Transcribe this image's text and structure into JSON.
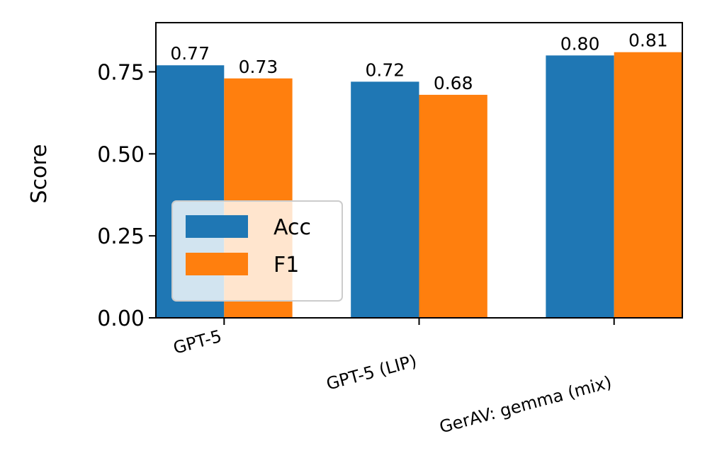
{
  "chart_data": {
    "type": "bar",
    "title": "",
    "xlabel": "",
    "ylabel": "Score",
    "categories": [
      "GPT-5",
      "GPT-5 (LIP)",
      "GerAV: gemma (mix)"
    ],
    "series": [
      {
        "name": "Acc",
        "color": "#1f77b4",
        "values": [
          0.77,
          0.72,
          0.8
        ],
        "labels": [
          "0.77",
          "0.72",
          "0.80"
        ]
      },
      {
        "name": "F1",
        "color": "#ff7f0e",
        "values": [
          0.73,
          0.68,
          0.81
        ],
        "labels": [
          "0.73",
          "0.68",
          "0.81"
        ]
      }
    ],
    "ylim": [
      0,
      0.9
    ],
    "yticks": [
      0.0,
      0.25,
      0.5,
      0.75
    ],
    "ytick_labels": [
      "0.00",
      "0.25",
      "0.50",
      "0.75"
    ],
    "legend_position": "lower-left",
    "grid": false
  }
}
